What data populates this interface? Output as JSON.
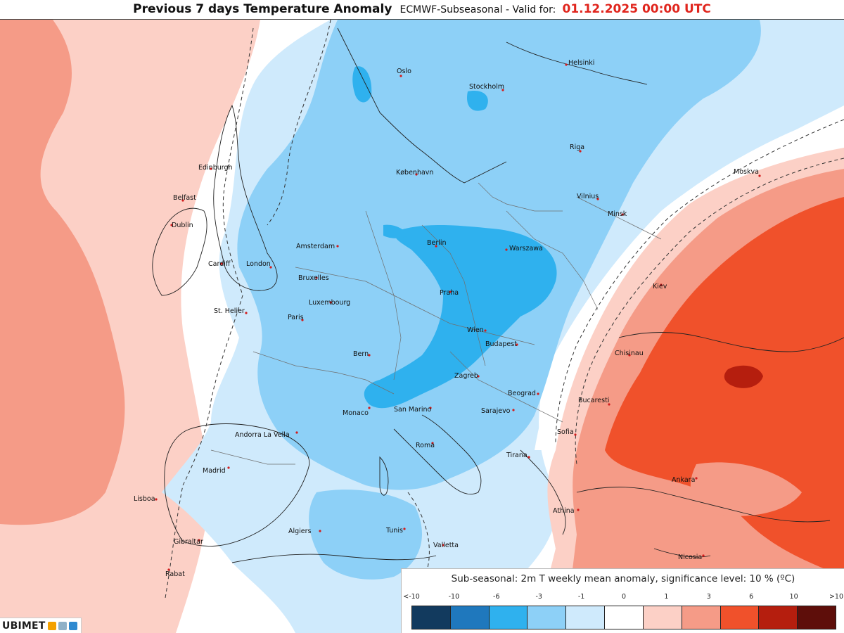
{
  "header": {
    "title": "Previous 7 days Temperature Anomaly",
    "model_valid": "ECMWF-Subseasonal - Valid for:",
    "valid_date": "01.12.2025 00:00 UTC"
  },
  "legend": {
    "title": "Sub-seasonal: 2m T weekly mean anomaly, significance level: 10 % (ºC)",
    "ticks": [
      "<-10",
      "-10",
      "-6",
      "-3",
      "-1",
      "0",
      "1",
      "3",
      "6",
      "10",
      ">10"
    ],
    "colors": [
      "#123a5e",
      "#1f78bd",
      "#2fb1ee",
      "#8dd0f7",
      "#cfeafc",
      "#ffffff",
      "#fcd0c6",
      "#f59b87",
      "#f0512b",
      "#b51e0e",
      "#5e0e0a"
    ]
  },
  "logo": {
    "brand": "UBIMET"
  },
  "cities": [
    "Oslo",
    "Stockholm",
    "Helsinki",
    "Riga",
    "Moskva",
    "Edinburgh",
    "København",
    "Vilnius",
    "Belfast",
    "Minsk",
    "Dublin",
    "Amsterdam",
    "Berlin",
    "Warszawa",
    "Cardiff",
    "London",
    "Bruxelles",
    "Kiev",
    "Praha",
    "Luxembourg",
    "St. Helier",
    "Paris",
    "Wien",
    "Budapest",
    "Chisinau",
    "Bern",
    "Zagreb",
    "Beograd",
    "Bucaresti",
    "Monaco",
    "San Marino",
    "Sarajevo",
    "Andorra La Vella",
    "Sofia",
    "Roma",
    "Madrid",
    "Tirana",
    "Ankara",
    "Lisboa",
    "Athina",
    "Algiers",
    "Tunis",
    "Gibraltar",
    "Valletta",
    "Nicosia",
    "Rabat"
  ]
}
